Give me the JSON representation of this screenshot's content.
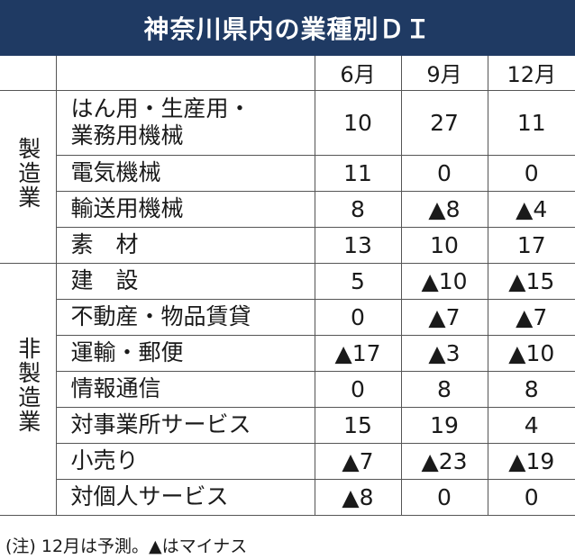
{
  "title": "神奈川県内の業種別ＤＩ",
  "columns": [
    "6月",
    "9月",
    "12月"
  ],
  "groups": [
    {
      "label": "製造業",
      "rows": [
        {
          "sector": "はん用・生産用・\n業務用機械",
          "values": [
            "10",
            "27",
            "11"
          ]
        },
        {
          "sector": "電気機械",
          "values": [
            "11",
            "0",
            "0"
          ]
        },
        {
          "sector": "輸送用機械",
          "values": [
            "8",
            "▲8",
            "▲4"
          ]
        },
        {
          "sector": "素　材",
          "values": [
            "13",
            "10",
            "17"
          ]
        }
      ]
    },
    {
      "label": "非製造業",
      "rows": [
        {
          "sector": "建　設",
          "values": [
            "5",
            "▲10",
            "▲15"
          ]
        },
        {
          "sector": "不動産・物品賃貸",
          "values": [
            "0",
            "▲7",
            "▲7"
          ]
        },
        {
          "sector": "運輸・郵便",
          "values": [
            "▲17",
            "▲3",
            "▲10"
          ]
        },
        {
          "sector": "情報通信",
          "values": [
            "0",
            "8",
            "8"
          ]
        },
        {
          "sector": "対事業所サービス",
          "values": [
            "15",
            "19",
            "4"
          ]
        },
        {
          "sector": "小売り",
          "values": [
            "▲7",
            "▲23",
            "▲19"
          ]
        },
        {
          "sector": "対個人サービス",
          "values": [
            "▲8",
            "0",
            "0"
          ]
        }
      ]
    }
  ],
  "note": "(注) 12月は予測。▲はマイナス",
  "colors": {
    "title_background": "#1f3a63",
    "title_text": "#ffffff",
    "grid": "#555555"
  }
}
